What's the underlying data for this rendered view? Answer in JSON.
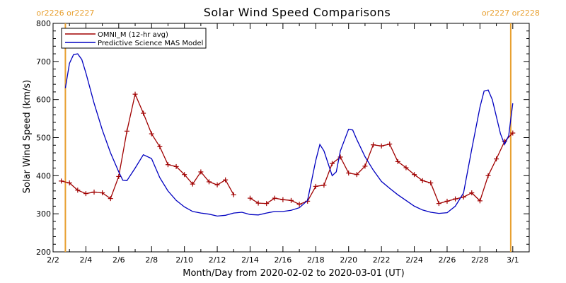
{
  "chart_data": {
    "type": "line",
    "title": "Solar Wind Speed Comparisons",
    "xlabel": "Month/Day from 2020-02-02 to 2020-03-01 (UT)",
    "ylabel": "Solar Wind Speed (km/s)",
    "ylim": [
      200,
      800
    ],
    "yticks": [
      200,
      300,
      400,
      500,
      600,
      700,
      800
    ],
    "xlim": [
      "2020-02-02",
      "2020-03-02"
    ],
    "xticks": [
      {
        "date": "2020-02-02",
        "label": "2/2"
      },
      {
        "date": "2020-02-04",
        "label": "2/4"
      },
      {
        "date": "2020-02-06",
        "label": "2/6"
      },
      {
        "date": "2020-02-08",
        "label": "2/8"
      },
      {
        "date": "2020-02-10",
        "label": "2/10"
      },
      {
        "date": "2020-02-12",
        "label": "2/12"
      },
      {
        "date": "2020-02-14",
        "label": "2/14"
      },
      {
        "date": "2020-02-16",
        "label": "2/16"
      },
      {
        "date": "2020-02-18",
        "label": "2/18"
      },
      {
        "date": "2020-02-20",
        "label": "2/20"
      },
      {
        "date": "2020-02-22",
        "label": "2/22"
      },
      {
        "date": "2020-02-24",
        "label": "2/24"
      },
      {
        "date": "2020-02-26",
        "label": "2/26"
      },
      {
        "date": "2020-02-28",
        "label": "2/28"
      },
      {
        "date": "2020-03-01",
        "label": "3/1"
      }
    ],
    "legend_position": "top-left",
    "rotation_markers": [
      {
        "date": "2020-02-02 18:00",
        "labels": [
          "or2226",
          "or2227"
        ],
        "color": "#e8a030"
      },
      {
        "date": "2020-02-29 21:00",
        "labels": [
          "or2227",
          "or2228"
        ],
        "color": "#e8a030"
      }
    ],
    "series": [
      {
        "name": "OMNI_M (12-hr avg)",
        "color": "#a00000",
        "marker": "plus",
        "segments": [
          [
            [
              "2020-02-02 12:00",
              386
            ],
            [
              "2020-02-03 00:00",
              381
            ],
            [
              "2020-02-03 12:00",
              362
            ],
            [
              "2020-02-04 00:00",
              353
            ],
            [
              "2020-02-04 12:00",
              357
            ],
            [
              "2020-02-05 00:00",
              355
            ],
            [
              "2020-02-05 12:00",
              340
            ],
            [
              "2020-02-06 00:00",
              398
            ],
            [
              "2020-02-06 12:00",
              517
            ],
            [
              "2020-02-07 00:00",
              614
            ],
            [
              "2020-02-07 12:00",
              564
            ],
            [
              "2020-02-08 00:00",
              510
            ],
            [
              "2020-02-08 12:00",
              476
            ],
            [
              "2020-02-09 00:00",
              429
            ],
            [
              "2020-02-09 12:00",
              424
            ],
            [
              "2020-02-10 00:00",
              403
            ],
            [
              "2020-02-10 12:00",
              378
            ],
            [
              "2020-02-11 00:00",
              410
            ],
            [
              "2020-02-11 12:00",
              384
            ],
            [
              "2020-02-12 00:00",
              376
            ],
            [
              "2020-02-12 12:00",
              389
            ],
            [
              "2020-02-13 00:00",
              350
            ]
          ],
          [
            [
              "2020-02-14 00:00",
              341
            ],
            [
              "2020-02-14 12:00",
              328
            ],
            [
              "2020-02-15 00:00",
              327
            ],
            [
              "2020-02-15 12:00",
              341
            ],
            [
              "2020-02-16 00:00",
              337
            ],
            [
              "2020-02-16 12:00",
              335
            ],
            [
              "2020-02-17 00:00",
              325
            ],
            [
              "2020-02-17 12:00",
              333
            ],
            [
              "2020-02-18 00:00",
              372
            ],
            [
              "2020-02-18 12:00",
              375
            ],
            [
              "2020-02-19 00:00",
              432
            ],
            [
              "2020-02-19 12:00",
              449
            ],
            [
              "2020-02-20 00:00",
              407
            ],
            [
              "2020-02-20 12:00",
              403
            ],
            [
              "2020-02-21 00:00",
              425
            ],
            [
              "2020-02-21 12:00",
              481
            ],
            [
              "2020-02-22 00:00",
              478
            ],
            [
              "2020-02-22 12:00",
              483
            ],
            [
              "2020-02-23 00:00",
              437
            ],
            [
              "2020-02-23 12:00",
              421
            ],
            [
              "2020-02-24 00:00",
              403
            ],
            [
              "2020-02-24 12:00",
              387
            ],
            [
              "2020-02-25 00:00",
              381
            ],
            [
              "2020-02-25 12:00",
              327
            ],
            [
              "2020-02-26 00:00",
              333
            ],
            [
              "2020-02-26 12:00",
              339
            ],
            [
              "2020-02-27 00:00",
              344
            ],
            [
              "2020-02-27 12:00",
              355
            ],
            [
              "2020-02-28 00:00",
              334
            ],
            [
              "2020-02-28 12:00",
              400
            ],
            [
              "2020-02-29 00:00",
              444
            ],
            [
              "2020-02-29 12:00",
              490
            ],
            [
              "2020-03-01 00:00",
              512
            ]
          ]
        ]
      },
      {
        "name": "Predictive Science MAS Model",
        "color": "#0000c0",
        "marker": "none",
        "points": [
          [
            "2020-02-02 18:00",
            630
          ],
          [
            "2020-02-03 00:00",
            695
          ],
          [
            "2020-02-03 06:00",
            718
          ],
          [
            "2020-02-03 12:00",
            720
          ],
          [
            "2020-02-03 18:00",
            705
          ],
          [
            "2020-02-04 00:00",
            670
          ],
          [
            "2020-02-04 12:00",
            590
          ],
          [
            "2020-02-05 00:00",
            520
          ],
          [
            "2020-02-05 12:00",
            460
          ],
          [
            "2020-02-06 00:00",
            410
          ],
          [
            "2020-02-06 06:00",
            388
          ],
          [
            "2020-02-06 12:00",
            387
          ],
          [
            "2020-02-07 00:00",
            420
          ],
          [
            "2020-02-07 12:00",
            455
          ],
          [
            "2020-02-08 00:00",
            445
          ],
          [
            "2020-02-08 12:00",
            395
          ],
          [
            "2020-02-09 00:00",
            360
          ],
          [
            "2020-02-09 12:00",
            335
          ],
          [
            "2020-02-10 00:00",
            318
          ],
          [
            "2020-02-10 12:00",
            306
          ],
          [
            "2020-02-11 00:00",
            302
          ],
          [
            "2020-02-11 12:00",
            299
          ],
          [
            "2020-02-12 00:00",
            294
          ],
          [
            "2020-02-12 12:00",
            296
          ],
          [
            "2020-02-13 00:00",
            302
          ],
          [
            "2020-02-13 12:00",
            304
          ],
          [
            "2020-02-14 00:00",
            298
          ],
          [
            "2020-02-14 12:00",
            297
          ],
          [
            "2020-02-15 00:00",
            302
          ],
          [
            "2020-02-15 12:00",
            306
          ],
          [
            "2020-02-16 00:00",
            306
          ],
          [
            "2020-02-16 12:00",
            309
          ],
          [
            "2020-02-17 00:00",
            316
          ],
          [
            "2020-02-17 12:00",
            335
          ],
          [
            "2020-02-18 00:00",
            440
          ],
          [
            "2020-02-18 06:00",
            482
          ],
          [
            "2020-02-18 12:00",
            465
          ],
          [
            "2020-02-19 00:00",
            400
          ],
          [
            "2020-02-19 06:00",
            410
          ],
          [
            "2020-02-19 12:00",
            465
          ],
          [
            "2020-02-20 00:00",
            522
          ],
          [
            "2020-02-20 06:00",
            520
          ],
          [
            "2020-02-20 12:00",
            495
          ],
          [
            "2020-02-21 00:00",
            450
          ],
          [
            "2020-02-21 12:00",
            415
          ],
          [
            "2020-02-22 00:00",
            385
          ],
          [
            "2020-02-22 12:00",
            367
          ],
          [
            "2020-02-23 00:00",
            350
          ],
          [
            "2020-02-23 12:00",
            335
          ],
          [
            "2020-02-24 00:00",
            320
          ],
          [
            "2020-02-24 12:00",
            310
          ],
          [
            "2020-02-25 00:00",
            304
          ],
          [
            "2020-02-25 12:00",
            301
          ],
          [
            "2020-02-26 00:00",
            303
          ],
          [
            "2020-02-26 12:00",
            320
          ],
          [
            "2020-02-27 00:00",
            355
          ],
          [
            "2020-02-27 12:00",
            470
          ],
          [
            "2020-02-28 00:00",
            580
          ],
          [
            "2020-02-28 06:00",
            622
          ],
          [
            "2020-02-28 12:00",
            625
          ],
          [
            "2020-02-28 18:00",
            600
          ],
          [
            "2020-02-29 00:00",
            555
          ],
          [
            "2020-02-29 06:00",
            510
          ],
          [
            "2020-02-29 12:00",
            482
          ],
          [
            "2020-02-29 18:00",
            505
          ],
          [
            "2020-03-01 00:00",
            590
          ]
        ]
      }
    ]
  }
}
